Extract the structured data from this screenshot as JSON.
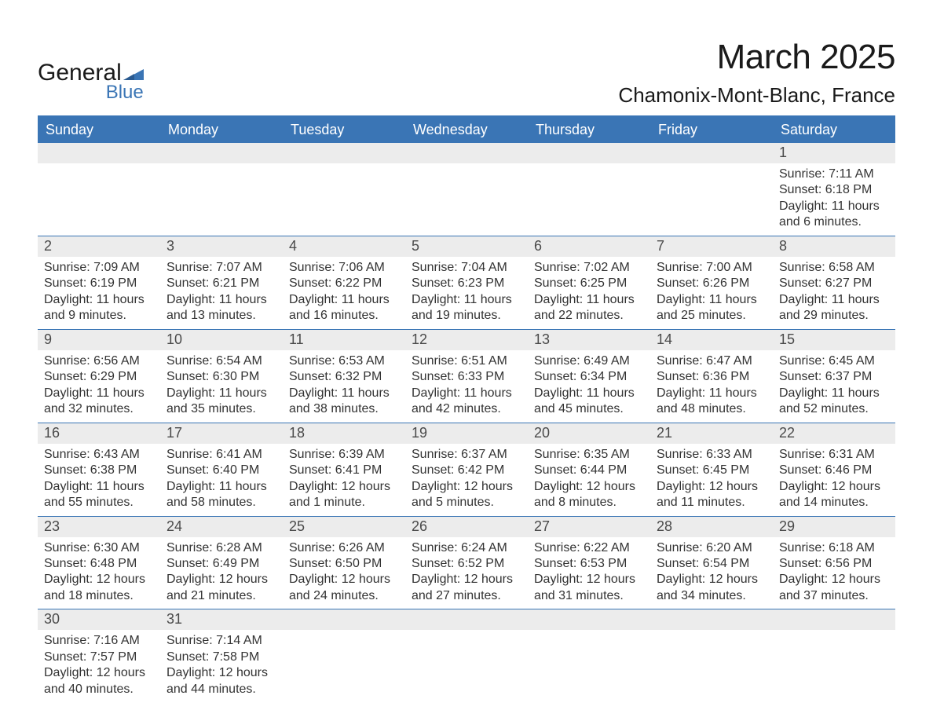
{
  "brand": {
    "name_part1": "General",
    "name_part2": "Blue",
    "text_color": "#1a1a1a",
    "accent_color": "#3a75b5"
  },
  "title": {
    "month_year": "March 2025",
    "location": "Chamonix-Mont-Blanc, France",
    "month_fontsize": 44,
    "location_fontsize": 26
  },
  "colors": {
    "header_bg": "#3a75b5",
    "header_text": "#ffffff",
    "daynum_bg": "#ececec",
    "daynum_text": "#4a4a4a",
    "body_text": "#333333",
    "week_border": "#3a75b5",
    "page_bg": "#ffffff"
  },
  "days_of_week": [
    "Sunday",
    "Monday",
    "Tuesday",
    "Wednesday",
    "Thursday",
    "Friday",
    "Saturday"
  ],
  "weeks": [
    [
      {
        "n": "",
        "sunrise": "",
        "sunset": "",
        "daylight1": "",
        "daylight2": "",
        "empty": true
      },
      {
        "n": "",
        "sunrise": "",
        "sunset": "",
        "daylight1": "",
        "daylight2": "",
        "empty": true
      },
      {
        "n": "",
        "sunrise": "",
        "sunset": "",
        "daylight1": "",
        "daylight2": "",
        "empty": true
      },
      {
        "n": "",
        "sunrise": "",
        "sunset": "",
        "daylight1": "",
        "daylight2": "",
        "empty": true
      },
      {
        "n": "",
        "sunrise": "",
        "sunset": "",
        "daylight1": "",
        "daylight2": "",
        "empty": true
      },
      {
        "n": "",
        "sunrise": "",
        "sunset": "",
        "daylight1": "",
        "daylight2": "",
        "empty": true
      },
      {
        "n": "1",
        "sunrise": "Sunrise: 7:11 AM",
        "sunset": "Sunset: 6:18 PM",
        "daylight1": "Daylight: 11 hours",
        "daylight2": "and 6 minutes."
      }
    ],
    [
      {
        "n": "2",
        "sunrise": "Sunrise: 7:09 AM",
        "sunset": "Sunset: 6:19 PM",
        "daylight1": "Daylight: 11 hours",
        "daylight2": "and 9 minutes."
      },
      {
        "n": "3",
        "sunrise": "Sunrise: 7:07 AM",
        "sunset": "Sunset: 6:21 PM",
        "daylight1": "Daylight: 11 hours",
        "daylight2": "and 13 minutes."
      },
      {
        "n": "4",
        "sunrise": "Sunrise: 7:06 AM",
        "sunset": "Sunset: 6:22 PM",
        "daylight1": "Daylight: 11 hours",
        "daylight2": "and 16 minutes."
      },
      {
        "n": "5",
        "sunrise": "Sunrise: 7:04 AM",
        "sunset": "Sunset: 6:23 PM",
        "daylight1": "Daylight: 11 hours",
        "daylight2": "and 19 minutes."
      },
      {
        "n": "6",
        "sunrise": "Sunrise: 7:02 AM",
        "sunset": "Sunset: 6:25 PM",
        "daylight1": "Daylight: 11 hours",
        "daylight2": "and 22 minutes."
      },
      {
        "n": "7",
        "sunrise": "Sunrise: 7:00 AM",
        "sunset": "Sunset: 6:26 PM",
        "daylight1": "Daylight: 11 hours",
        "daylight2": "and 25 minutes."
      },
      {
        "n": "8",
        "sunrise": "Sunrise: 6:58 AM",
        "sunset": "Sunset: 6:27 PM",
        "daylight1": "Daylight: 11 hours",
        "daylight2": "and 29 minutes."
      }
    ],
    [
      {
        "n": "9",
        "sunrise": "Sunrise: 6:56 AM",
        "sunset": "Sunset: 6:29 PM",
        "daylight1": "Daylight: 11 hours",
        "daylight2": "and 32 minutes."
      },
      {
        "n": "10",
        "sunrise": "Sunrise: 6:54 AM",
        "sunset": "Sunset: 6:30 PM",
        "daylight1": "Daylight: 11 hours",
        "daylight2": "and 35 minutes."
      },
      {
        "n": "11",
        "sunrise": "Sunrise: 6:53 AM",
        "sunset": "Sunset: 6:32 PM",
        "daylight1": "Daylight: 11 hours",
        "daylight2": "and 38 minutes."
      },
      {
        "n": "12",
        "sunrise": "Sunrise: 6:51 AM",
        "sunset": "Sunset: 6:33 PM",
        "daylight1": "Daylight: 11 hours",
        "daylight2": "and 42 minutes."
      },
      {
        "n": "13",
        "sunrise": "Sunrise: 6:49 AM",
        "sunset": "Sunset: 6:34 PM",
        "daylight1": "Daylight: 11 hours",
        "daylight2": "and 45 minutes."
      },
      {
        "n": "14",
        "sunrise": "Sunrise: 6:47 AM",
        "sunset": "Sunset: 6:36 PM",
        "daylight1": "Daylight: 11 hours",
        "daylight2": "and 48 minutes."
      },
      {
        "n": "15",
        "sunrise": "Sunrise: 6:45 AM",
        "sunset": "Sunset: 6:37 PM",
        "daylight1": "Daylight: 11 hours",
        "daylight2": "and 52 minutes."
      }
    ],
    [
      {
        "n": "16",
        "sunrise": "Sunrise: 6:43 AM",
        "sunset": "Sunset: 6:38 PM",
        "daylight1": "Daylight: 11 hours",
        "daylight2": "and 55 minutes."
      },
      {
        "n": "17",
        "sunrise": "Sunrise: 6:41 AM",
        "sunset": "Sunset: 6:40 PM",
        "daylight1": "Daylight: 11 hours",
        "daylight2": "and 58 minutes."
      },
      {
        "n": "18",
        "sunrise": "Sunrise: 6:39 AM",
        "sunset": "Sunset: 6:41 PM",
        "daylight1": "Daylight: 12 hours",
        "daylight2": "and 1 minute."
      },
      {
        "n": "19",
        "sunrise": "Sunrise: 6:37 AM",
        "sunset": "Sunset: 6:42 PM",
        "daylight1": "Daylight: 12 hours",
        "daylight2": "and 5 minutes."
      },
      {
        "n": "20",
        "sunrise": "Sunrise: 6:35 AM",
        "sunset": "Sunset: 6:44 PM",
        "daylight1": "Daylight: 12 hours",
        "daylight2": "and 8 minutes."
      },
      {
        "n": "21",
        "sunrise": "Sunrise: 6:33 AM",
        "sunset": "Sunset: 6:45 PM",
        "daylight1": "Daylight: 12 hours",
        "daylight2": "and 11 minutes."
      },
      {
        "n": "22",
        "sunrise": "Sunrise: 6:31 AM",
        "sunset": "Sunset: 6:46 PM",
        "daylight1": "Daylight: 12 hours",
        "daylight2": "and 14 minutes."
      }
    ],
    [
      {
        "n": "23",
        "sunrise": "Sunrise: 6:30 AM",
        "sunset": "Sunset: 6:48 PM",
        "daylight1": "Daylight: 12 hours",
        "daylight2": "and 18 minutes."
      },
      {
        "n": "24",
        "sunrise": "Sunrise: 6:28 AM",
        "sunset": "Sunset: 6:49 PM",
        "daylight1": "Daylight: 12 hours",
        "daylight2": "and 21 minutes."
      },
      {
        "n": "25",
        "sunrise": "Sunrise: 6:26 AM",
        "sunset": "Sunset: 6:50 PM",
        "daylight1": "Daylight: 12 hours",
        "daylight2": "and 24 minutes."
      },
      {
        "n": "26",
        "sunrise": "Sunrise: 6:24 AM",
        "sunset": "Sunset: 6:52 PM",
        "daylight1": "Daylight: 12 hours",
        "daylight2": "and 27 minutes."
      },
      {
        "n": "27",
        "sunrise": "Sunrise: 6:22 AM",
        "sunset": "Sunset: 6:53 PM",
        "daylight1": "Daylight: 12 hours",
        "daylight2": "and 31 minutes."
      },
      {
        "n": "28",
        "sunrise": "Sunrise: 6:20 AM",
        "sunset": "Sunset: 6:54 PM",
        "daylight1": "Daylight: 12 hours",
        "daylight2": "and 34 minutes."
      },
      {
        "n": "29",
        "sunrise": "Sunrise: 6:18 AM",
        "sunset": "Sunset: 6:56 PM",
        "daylight1": "Daylight: 12 hours",
        "daylight2": "and 37 minutes."
      }
    ],
    [
      {
        "n": "30",
        "sunrise": "Sunrise: 7:16 AM",
        "sunset": "Sunset: 7:57 PM",
        "daylight1": "Daylight: 12 hours",
        "daylight2": "and 40 minutes."
      },
      {
        "n": "31",
        "sunrise": "Sunrise: 7:14 AM",
        "sunset": "Sunset: 7:58 PM",
        "daylight1": "Daylight: 12 hours",
        "daylight2": "and 44 minutes."
      },
      {
        "n": "",
        "sunrise": "",
        "sunset": "",
        "daylight1": "",
        "daylight2": "",
        "empty": true
      },
      {
        "n": "",
        "sunrise": "",
        "sunset": "",
        "daylight1": "",
        "daylight2": "",
        "empty": true
      },
      {
        "n": "",
        "sunrise": "",
        "sunset": "",
        "daylight1": "",
        "daylight2": "",
        "empty": true
      },
      {
        "n": "",
        "sunrise": "",
        "sunset": "",
        "daylight1": "",
        "daylight2": "",
        "empty": true
      },
      {
        "n": "",
        "sunrise": "",
        "sunset": "",
        "daylight1": "",
        "daylight2": "",
        "empty": true
      }
    ]
  ]
}
